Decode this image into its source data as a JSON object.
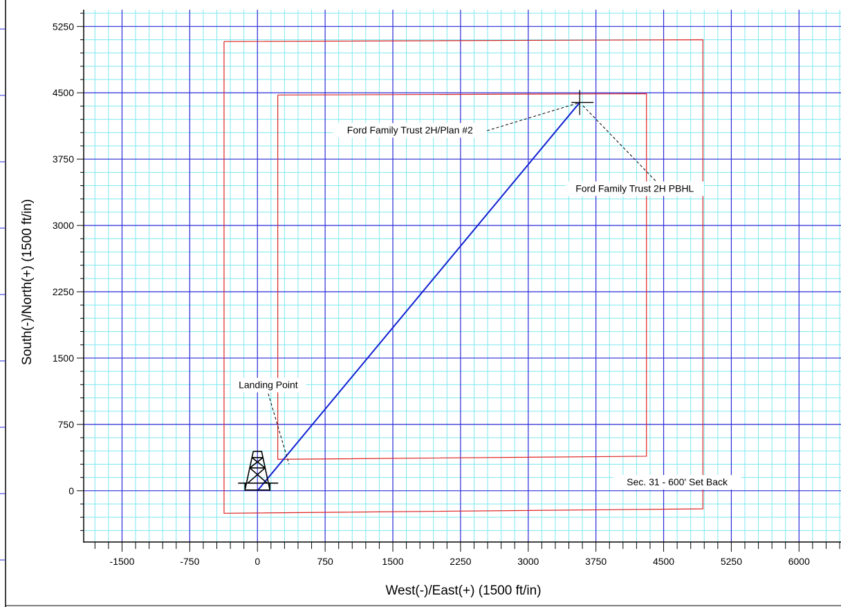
{
  "chart_data": {
    "type": "line",
    "xlabel": "West(-)/East(+) (1500 ft/in)",
    "ylabel": "South(-)/North(+) (1500 ft/in)",
    "xlim": [
      -1925,
      6465
    ],
    "ylim": [
      -580,
      5440
    ],
    "x_ticks": [
      -1500,
      -750,
      0,
      750,
      1500,
      2250,
      3000,
      3750,
      4500,
      5250,
      6000
    ],
    "y_ticks": [
      0,
      750,
      1500,
      2250,
      3000,
      3750,
      4500,
      5250
    ],
    "minor_step": 150,
    "major_step": 750,
    "grid": true,
    "colors": {
      "major_grid": "#2828d8",
      "minor_grid": "#7ee8ef",
      "lease": "#dd2222",
      "wellpath": "#1020d0",
      "text": "#000000"
    },
    "series": [
      {
        "values": [
          [
            0,
            0
          ],
          [
            3570,
            4390
          ]
        ]
      }
    ],
    "boundaries": [
      {
        "label": "Sec. 31 - 600' Set Back",
        "points": [
          [
            -370,
            5080
          ],
          [
            4935,
            5100
          ],
          [
            4935,
            -205
          ],
          [
            -370,
            -255
          ],
          [
            -370,
            5080
          ]
        ]
      },
      {
        "points": [
          [
            225,
            4475
          ],
          [
            4310,
            4490
          ],
          [
            4310,
            390
          ],
          [
            225,
            355
          ],
          [
            225,
            4475
          ]
        ]
      }
    ],
    "annotations": [
      {
        "id": "landing-point",
        "text": "Landing Point",
        "label_at": [
          120,
          1160
        ],
        "target": [
          350,
          300
        ]
      },
      {
        "id": "plan",
        "text": "Ford Family Trust 2H/Plan #2",
        "label_at": [
          1690,
          4040
        ],
        "target": [
          3570,
          4390
        ]
      },
      {
        "id": "pbhl",
        "text": "Ford Family Trust 2H PBHL",
        "label_at": [
          4180,
          3380
        ],
        "target": [
          3600,
          4360
        ]
      },
      {
        "id": "setback",
        "text": "Sec. 31 - 600' Set Back",
        "label_at": [
          4650,
          60
        ],
        "target": null
      }
    ],
    "target_marker": {
      "name": "target-crosshair",
      "at": [
        3570,
        4390
      ]
    },
    "rig_marker": {
      "name": "oil-rig-icon",
      "at": [
        0,
        0
      ]
    }
  }
}
